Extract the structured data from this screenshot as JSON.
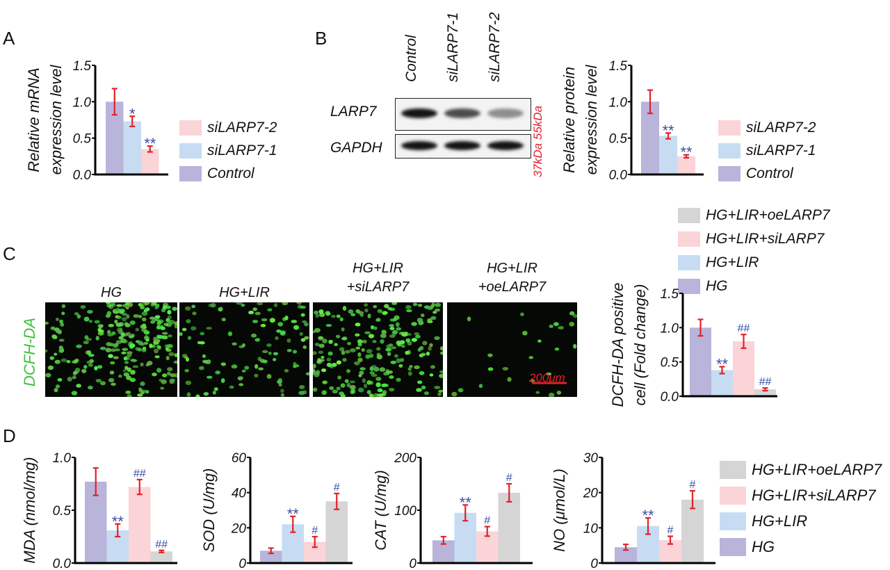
{
  "panels": {
    "a": "A",
    "b": "B",
    "c": "C",
    "d": "D"
  },
  "colors": {
    "purple": "#b9b4da",
    "blue": "#c7dcf2",
    "pink": "#fad4d7",
    "gray": "#d5d5d5",
    "error": "#e3202b",
    "sig": "#3a50a3",
    "stain": "#3fbf3f",
    "marker": "#e3202b"
  },
  "legend_a": [
    {
      "label": "siLARP7-2",
      "color": "pink"
    },
    {
      "label": "siLARP7-1",
      "color": "blue"
    },
    {
      "label": "Control",
      "color": "purple"
    }
  ],
  "legend_b": [
    {
      "label": "siLARP7-2",
      "color": "pink"
    },
    {
      "label": "siLARP7-1",
      "color": "blue"
    },
    {
      "label": "Control",
      "color": "purple"
    }
  ],
  "legend_c": [
    {
      "label": "HG+LIR+oeLARP7",
      "color": "gray"
    },
    {
      "label": "HG+LIR+siLARP7",
      "color": "pink"
    },
    {
      "label": "HG+LIR",
      "color": "blue"
    },
    {
      "label": "HG",
      "color": "purple"
    }
  ],
  "legend_d": [
    {
      "label": "HG+LIR+oeLARP7",
      "color": "gray"
    },
    {
      "label": "HG+LIR+siLARP7",
      "color": "pink"
    },
    {
      "label": "HG+LIR",
      "color": "blue"
    },
    {
      "label": "HG",
      "color": "purple"
    }
  ],
  "western": {
    "lanes": [
      "Control",
      "siLARP7-1",
      "siLARP7-2"
    ],
    "rows": [
      "LARP7",
      "GAPDH"
    ],
    "markers": "37kDa 55kDa"
  },
  "micrographs": {
    "stain": "DCFH-DA",
    "scale_bar": "200μm",
    "groups": [
      {
        "line1": "HG",
        "line2": ""
      },
      {
        "line1": "HG+LIR",
        "line2": ""
      },
      {
        "line1": "HG+LIR",
        "line2": "+siLARP7"
      },
      {
        "line1": "HG+LIR",
        "line2": "+oeLARP7"
      }
    ]
  },
  "chart_data": [
    {
      "id": "mrna",
      "type": "bar",
      "ylabel": [
        "Relative mRNA",
        "expression level"
      ],
      "ylim": [
        0,
        1.5
      ],
      "ticks": [
        "0.0",
        "0.5",
        "1.0",
        "1.5"
      ],
      "tick_values": [
        0,
        0.5,
        1,
        1.5
      ],
      "categories": [
        "Control",
        "siLARP7-1",
        "siLARP7-2"
      ],
      "colors": [
        "purple",
        "blue",
        "pink"
      ],
      "values": [
        1.0,
        0.73,
        0.35
      ],
      "errors": [
        0.18,
        0.07,
        0.04
      ],
      "sig": [
        "",
        "*",
        "**"
      ]
    },
    {
      "id": "protein",
      "type": "bar",
      "ylabel": [
        "Relative protein",
        "expression level"
      ],
      "ylim": [
        0,
        1.5
      ],
      "ticks": [
        "0.0",
        "0.5",
        "1.0",
        "1.5"
      ],
      "tick_values": [
        0,
        0.5,
        1,
        1.5
      ],
      "categories": [
        "Control",
        "siLARP7-1",
        "siLARP7-2"
      ],
      "colors": [
        "purple",
        "blue",
        "pink"
      ],
      "values": [
        1.0,
        0.53,
        0.25
      ],
      "errors": [
        0.16,
        0.04,
        0.02
      ],
      "sig": [
        "",
        "**",
        "**"
      ]
    },
    {
      "id": "dcfh",
      "type": "bar",
      "ylabel": [
        "DCFH-DA positive",
        "cell (Fold change)"
      ],
      "ylim": [
        0,
        1.5
      ],
      "ticks": [
        "0.0",
        "0.5",
        "1.0",
        "1.5"
      ],
      "tick_values": [
        0,
        0.5,
        1,
        1.5
      ],
      "categories": [
        "HG",
        "HG+LIR",
        "HG+LIR+siLARP7",
        "HG+LIR+oeLARP7"
      ],
      "colors": [
        "purple",
        "blue",
        "pink",
        "gray"
      ],
      "values": [
        1.0,
        0.38,
        0.8,
        0.1
      ],
      "errors": [
        0.12,
        0.05,
        0.1,
        0.02
      ],
      "sig": [
        "",
        "**",
        "##",
        "##"
      ]
    },
    {
      "id": "mda",
      "type": "bar",
      "ylabel": [
        "MDA (nmol/mg)"
      ],
      "ylim": [
        0,
        1.0
      ],
      "ticks": [
        "0.0",
        "0.5",
        "1.0"
      ],
      "tick_values": [
        0,
        0.5,
        1
      ],
      "categories": [
        "HG",
        "HG+LIR",
        "HG+LIR+siLARP7",
        "HG+LIR+oeLARP7"
      ],
      "colors": [
        "purple",
        "blue",
        "pink",
        "gray"
      ],
      "values": [
        0.77,
        0.31,
        0.72,
        0.11
      ],
      "errors": [
        0.13,
        0.06,
        0.07,
        0.01
      ],
      "sig": [
        "",
        "**",
        "##",
        "##"
      ]
    },
    {
      "id": "sod",
      "type": "bar",
      "ylabel": [
        "SOD (U/mg)"
      ],
      "ylim": [
        0,
        60
      ],
      "ticks": [
        "0",
        "20",
        "40",
        "60"
      ],
      "tick_values": [
        0,
        20,
        40,
        60
      ],
      "categories": [
        "HG",
        "HG+LIR",
        "HG+LIR+siLARP7",
        "HG+LIR+oeLARP7"
      ],
      "colors": [
        "purple",
        "blue",
        "pink",
        "gray"
      ],
      "values": [
        7,
        22,
        12,
        35
      ],
      "errors": [
        1.5,
        4.5,
        3,
        4.5
      ],
      "sig": [
        "",
        "**",
        "#",
        "#"
      ]
    },
    {
      "id": "cat",
      "type": "bar",
      "ylabel": [
        "CAT (U/mg)"
      ],
      "ylim": [
        0,
        200
      ],
      "ticks": [
        "0",
        "100",
        "200"
      ],
      "tick_values": [
        0,
        100,
        200
      ],
      "categories": [
        "HG",
        "HG+LIR",
        "HG+LIR+siLARP7",
        "HG+LIR+oeLARP7"
      ],
      "colors": [
        "purple",
        "blue",
        "pink",
        "gray"
      ],
      "values": [
        43,
        95,
        60,
        133
      ],
      "errors": [
        7,
        15,
        9,
        17
      ],
      "sig": [
        "",
        "**",
        "#",
        "#"
      ]
    },
    {
      "id": "no",
      "type": "bar",
      "ylabel": [
        "NO (μmol/L)"
      ],
      "ylim": [
        0,
        30
      ],
      "ticks": [
        "0",
        "10",
        "20",
        "30"
      ],
      "tick_values": [
        0,
        10,
        20,
        30
      ],
      "categories": [
        "HG",
        "HG+LIR",
        "HG+LIR+siLARP7",
        "HG+LIR+oeLARP7"
      ],
      "colors": [
        "purple",
        "blue",
        "pink",
        "gray"
      ],
      "values": [
        4.5,
        10.5,
        6.5,
        18
      ],
      "errors": [
        0.8,
        2.3,
        1.1,
        2.5
      ],
      "sig": [
        "",
        "**",
        "#",
        "#"
      ]
    }
  ]
}
